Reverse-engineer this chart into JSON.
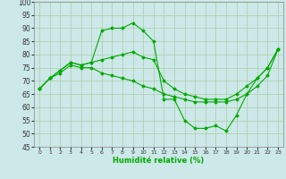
{
  "xlabel": "Humidité relative (%)",
  "background_color": "#cce8e8",
  "grid_color": "#aaccaa",
  "line_color": "#00aa00",
  "xlim": [
    -0.5,
    23.5
  ],
  "ylim": [
    45,
    100
  ],
  "xticks": [
    0,
    1,
    2,
    3,
    4,
    5,
    6,
    7,
    8,
    9,
    10,
    11,
    12,
    13,
    14,
    15,
    16,
    17,
    18,
    19,
    20,
    21,
    22,
    23
  ],
  "yticks": [
    45,
    50,
    55,
    60,
    65,
    70,
    75,
    80,
    85,
    90,
    95,
    100
  ],
  "series": [
    {
      "x": [
        0,
        1,
        2,
        3,
        4,
        5,
        6,
        7,
        8,
        9,
        10,
        11,
        12,
        13,
        14,
        15,
        16,
        17,
        18,
        19,
        20,
        21,
        22,
        23
      ],
      "y": [
        67,
        71,
        74,
        77,
        76,
        77,
        89,
        90,
        90,
        92,
        89,
        85,
        63,
        63,
        55,
        52,
        52,
        53,
        51,
        57,
        65,
        71,
        75,
        82
      ]
    },
    {
      "x": [
        0,
        1,
        2,
        3,
        4,
        5,
        6,
        7,
        8,
        9,
        10,
        11,
        12,
        13,
        14,
        15,
        16,
        17,
        18,
        19,
        20,
        21,
        22,
        23
      ],
      "y": [
        67,
        71,
        74,
        77,
        76,
        77,
        78,
        79,
        80,
        81,
        79,
        78,
        70,
        67,
        65,
        64,
        63,
        63,
        63,
        65,
        68,
        71,
        75,
        82
      ]
    },
    {
      "x": [
        0,
        1,
        2,
        3,
        4,
        5,
        6,
        7,
        8,
        9,
        10,
        11,
        12,
        13,
        14,
        15,
        16,
        17,
        18,
        19,
        20,
        21,
        22,
        23
      ],
      "y": [
        67,
        71,
        73,
        76,
        75,
        75,
        73,
        72,
        71,
        70,
        68,
        67,
        65,
        64,
        63,
        62,
        62,
        62,
        62,
        63,
        65,
        68,
        72,
        82
      ]
    }
  ]
}
